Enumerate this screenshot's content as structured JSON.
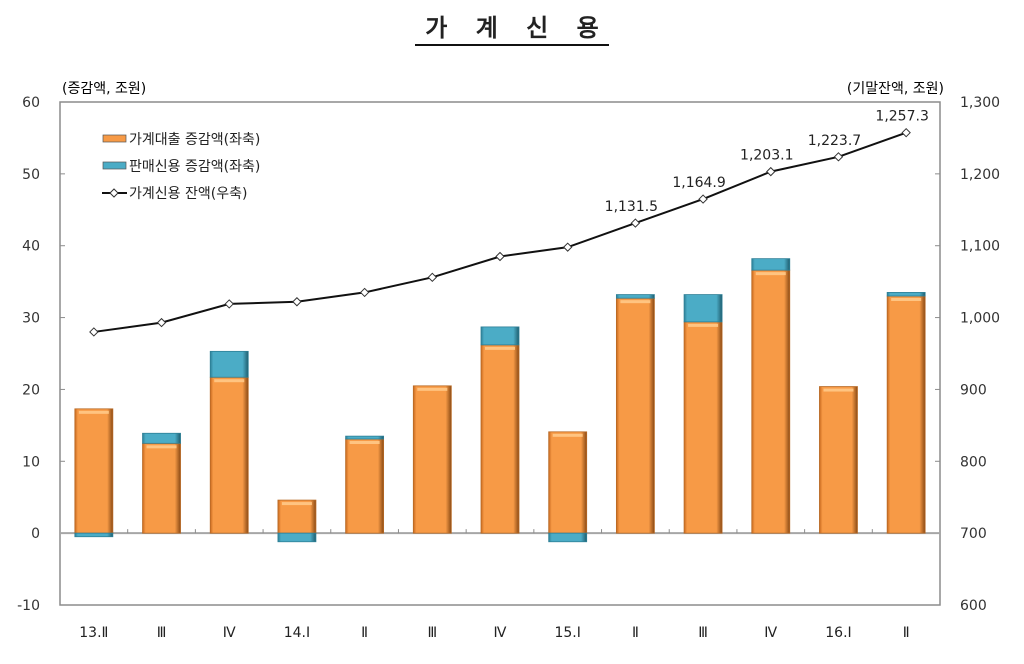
{
  "title": "가 계 신 용",
  "left_axis_unit": "(증감액, 조원)",
  "right_axis_unit": "(기말잔액, 조원)",
  "legend": [
    {
      "label": "가계대출 증감액(좌축)",
      "color": "#F79A46",
      "type": "bar"
    },
    {
      "label": "판매신용 증감액(좌축)",
      "color": "#4BACC6",
      "type": "bar"
    },
    {
      "label": "가계신용 잔액(우축)",
      "color": "#000000",
      "type": "line"
    }
  ],
  "chart_data": {
    "type": "bar",
    "title": "가계신용",
    "xlabel": "",
    "ylabel": "(증감액, 조원)",
    "y2label": "(기말잔액, 조원)",
    "categories": [
      "13.Ⅱ",
      "Ⅲ",
      "Ⅳ",
      "14.Ⅰ",
      "Ⅱ",
      "Ⅲ",
      "Ⅳ",
      "15.Ⅰ",
      "Ⅱ",
      "Ⅲ",
      "Ⅳ",
      "16.Ⅰ",
      "Ⅱ"
    ],
    "series": [
      {
        "name": "가계대출 증감액(좌축)",
        "type": "bar",
        "axis": "left",
        "stacked": true,
        "values": [
          17.3,
          12.5,
          21.7,
          4.6,
          13.1,
          20.5,
          26.2,
          14.1,
          32.7,
          29.4,
          36.6,
          20.4,
          33.0
        ]
      },
      {
        "name": "판매신용 증감액(좌축)",
        "type": "bar",
        "axis": "left",
        "stacked": true,
        "values": [
          -0.5,
          1.4,
          3.6,
          -1.2,
          0.4,
          0.0,
          2.5,
          -1.2,
          0.5,
          3.8,
          1.6,
          0.0,
          0.5
        ]
      },
      {
        "name": "가계신용 잔액(우축)",
        "type": "line",
        "axis": "right",
        "values": [
          980.0,
          993.0,
          1019.0,
          1022.0,
          1035.0,
          1056.0,
          1085.0,
          1098.0,
          1131.5,
          1164.9,
          1203.1,
          1223.7,
          1257.3
        ]
      }
    ],
    "data_labels": [
      {
        "index": 8,
        "text": "1,131.5"
      },
      {
        "index": 9,
        "text": "1,164.9"
      },
      {
        "index": 10,
        "text": "1,203.1"
      },
      {
        "index": 11,
        "text": "1,223.7"
      },
      {
        "index": 12,
        "text": "1,257.3"
      }
    ],
    "ylim": [
      -10,
      60
    ],
    "yticks": [
      "60",
      "50",
      "40",
      "30",
      "20",
      "10",
      "0",
      "-10"
    ],
    "y2lim": [
      600,
      1300
    ],
    "y2ticks": [
      "1,300",
      "1,200",
      "1,100",
      "1,000",
      "900",
      "800",
      "700",
      "600"
    ],
    "grid": false,
    "legend_position": "upper-left-inside"
  }
}
